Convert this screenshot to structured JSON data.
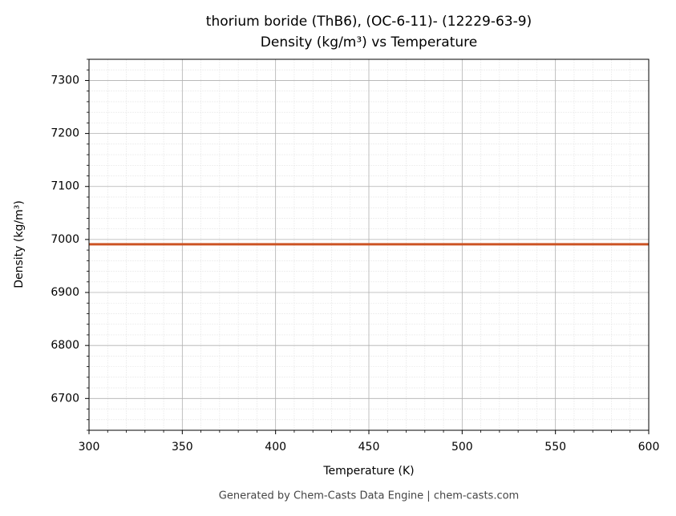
{
  "chart_data": {
    "type": "line",
    "title": "thorium boride (ThB6), (OC-6-11)- (12229-63-9)",
    "subtitle": "Density (kg/m³) vs Temperature",
    "x_label": "Temperature (K)",
    "y_label": "Density (kg/m³)",
    "footer": "Generated by Chem-Casts Data Engine | chem-casts.com",
    "x": [
      300,
      600
    ],
    "series": [
      {
        "name": "Density",
        "color": "#cc5424",
        "values": [
          6991,
          6991
        ]
      }
    ],
    "xlim": [
      300,
      600
    ],
    "xticks": [
      300,
      350,
      400,
      450,
      500,
      550,
      600
    ],
    "ylim": [
      6640,
      7340
    ],
    "yticks": [
      6700,
      6800,
      6900,
      7000,
      7100,
      7200,
      7300
    ],
    "grid": true
  }
}
